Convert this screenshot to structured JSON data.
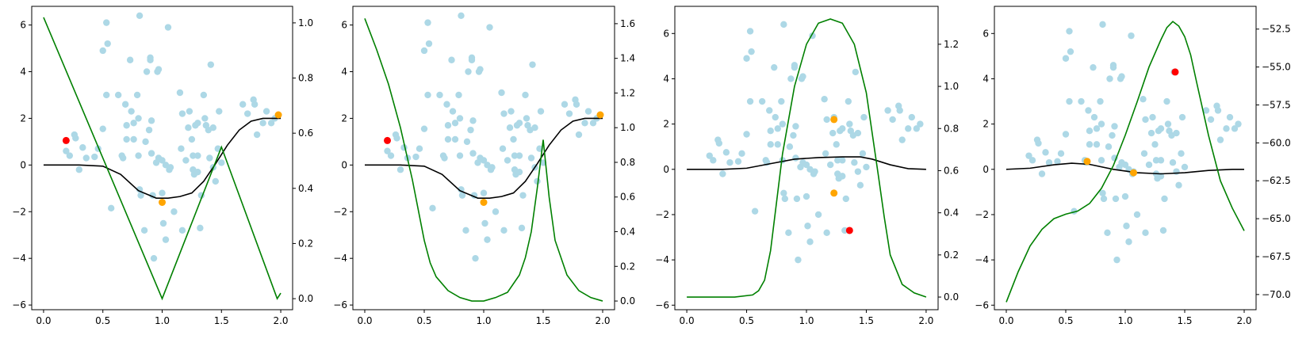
{
  "chart_data": [
    {
      "type": "scatter",
      "xlim": [
        -0.1,
        2.1
      ],
      "ylim": [
        -6.2,
        6.8
      ],
      "y2lim": [
        -0.04,
        1.06
      ],
      "xticks": [
        0,
        0.5,
        1,
        1.5,
        2
      ],
      "xtick_labels": [
        "0.0",
        "0.5",
        "1.0",
        "1.5",
        "2.0"
      ],
      "yticks": [
        -6,
        -4,
        -2,
        0,
        2,
        4,
        6
      ],
      "ytick_labels": [
        "−6",
        "−4",
        "−2",
        "0",
        "2",
        "4",
        "6"
      ],
      "y2ticks": [
        0,
        0.2,
        0.4,
        0.6,
        0.8,
        1.0
      ],
      "y2tick_labels": [
        "0.0",
        "0.2",
        "0.4",
        "0.6",
        "0.8",
        "1.0"
      ],
      "red_points": [
        [
          0.19,
          1.05
        ]
      ],
      "orange_points": [
        [
          1.0,
          -1.6
        ],
        [
          1.98,
          2.15
        ]
      ],
      "black_line": {
        "x": [
          0,
          0.3,
          0.5,
          0.65,
          0.8,
          0.95,
          1.05,
          1.15,
          1.25,
          1.35,
          1.45,
          1.55,
          1.65,
          1.75,
          1.85,
          2.0
        ],
        "y": [
          0,
          0,
          -0.05,
          -0.4,
          -1.1,
          -1.42,
          -1.42,
          -1.35,
          -1.2,
          -0.7,
          0.05,
          0.85,
          1.5,
          1.88,
          2.0,
          2.0
        ]
      },
      "green_line": {
        "x": [
          0,
          1.0,
          1.5,
          1.97,
          2.0
        ],
        "y": [
          1.02,
          0.0,
          0.55,
          0.0,
          0.02
        ]
      }
    },
    {
      "type": "scatter",
      "xlim": [
        -0.1,
        2.1
      ],
      "ylim": [
        -6.2,
        6.8
      ],
      "y2lim": [
        -0.05,
        1.7
      ],
      "xticks": [
        0,
        0.5,
        1,
        1.5,
        2
      ],
      "xtick_labels": [
        "0.0",
        "0.5",
        "1.0",
        "1.5",
        "2.0"
      ],
      "yticks": [
        -6,
        -4,
        -2,
        0,
        2,
        4,
        6
      ],
      "ytick_labels": [
        "−6",
        "−4",
        "−2",
        "0",
        "2",
        "4",
        "6"
      ],
      "y2ticks": [
        0,
        0.2,
        0.4,
        0.6,
        0.8,
        1.0,
        1.2,
        1.4,
        1.6
      ],
      "y2tick_labels": [
        "0.0",
        "0.2",
        "0.4",
        "0.6",
        "0.8",
        "1.0",
        "1.2",
        "1.4",
        "1.6"
      ],
      "red_points": [
        [
          0.19,
          1.05
        ]
      ],
      "orange_points": [
        [
          1.0,
          -1.6
        ],
        [
          1.98,
          2.15
        ]
      ],
      "black_line": {
        "x": [
          0,
          0.3,
          0.5,
          0.65,
          0.8,
          0.95,
          1.05,
          1.15,
          1.25,
          1.35,
          1.45,
          1.55,
          1.65,
          1.75,
          1.85,
          2.0
        ],
        "y": [
          0,
          0,
          -0.05,
          -0.4,
          -1.1,
          -1.42,
          -1.42,
          -1.35,
          -1.2,
          -0.7,
          0.05,
          0.85,
          1.5,
          1.88,
          2.0,
          2.0
        ]
      },
      "green_line": {
        "x": [
          0,
          0.1,
          0.2,
          0.3,
          0.4,
          0.5,
          0.55,
          0.6,
          0.7,
          0.8,
          0.9,
          1.0,
          1.1,
          1.2,
          1.3,
          1.35,
          1.4,
          1.45,
          1.5,
          1.55,
          1.6,
          1.7,
          1.8,
          1.9,
          2.0
        ],
        "y": [
          1.63,
          1.45,
          1.25,
          1.0,
          0.7,
          0.35,
          0.22,
          0.14,
          0.06,
          0.02,
          0.0,
          0.0,
          0.02,
          0.05,
          0.15,
          0.25,
          0.4,
          0.65,
          0.93,
          0.6,
          0.35,
          0.15,
          0.06,
          0.02,
          0.0
        ]
      }
    },
    {
      "type": "scatter",
      "xlim": [
        -0.1,
        2.1
      ],
      "ylim": [
        -6.2,
        7.2
      ],
      "y2lim": [
        -0.06,
        1.38
      ],
      "xticks": [
        0,
        0.5,
        1,
        1.5,
        2
      ],
      "xtick_labels": [
        "0.0",
        "0.5",
        "1.0",
        "1.5",
        "2.0"
      ],
      "yticks": [
        -6,
        -4,
        -2,
        0,
        2,
        4,
        6
      ],
      "ytick_labels": [
        "−6",
        "−4",
        "−2",
        "0",
        "2",
        "4",
        "6"
      ],
      "y2ticks": [
        0,
        0.2,
        0.4,
        0.6,
        0.8,
        1.0,
        1.2
      ],
      "y2tick_labels": [
        "0.0",
        "0.2",
        "0.4",
        "0.6",
        "0.8",
        "1.0",
        "1.2"
      ],
      "red_points": [
        [
          1.36,
          -2.7
        ]
      ],
      "orange_points": [
        [
          1.23,
          2.2
        ],
        [
          1.23,
          -1.05
        ]
      ],
      "black_line": {
        "x": [
          0,
          0.3,
          0.5,
          0.7,
          0.9,
          1.1,
          1.3,
          1.45,
          1.55,
          1.7,
          1.85,
          2.0
        ],
        "y": [
          0,
          0,
          0.05,
          0.25,
          0.45,
          0.52,
          0.55,
          0.55,
          0.45,
          0.2,
          0.03,
          0
        ]
      },
      "green_line": {
        "x": [
          0,
          0.4,
          0.55,
          0.6,
          0.65,
          0.7,
          0.75,
          0.8,
          0.9,
          1.0,
          1.1,
          1.2,
          1.3,
          1.4,
          1.5,
          1.6,
          1.65,
          1.7,
          1.8,
          1.9,
          2.0
        ],
        "y": [
          0,
          0,
          0.01,
          0.03,
          0.08,
          0.22,
          0.45,
          0.68,
          1.0,
          1.2,
          1.3,
          1.32,
          1.3,
          1.2,
          0.97,
          0.58,
          0.38,
          0.2,
          0.06,
          0.02,
          0.0
        ]
      }
    },
    {
      "type": "scatter",
      "xlim": [
        -0.1,
        2.1
      ],
      "ylim": [
        -6.2,
        7.2
      ],
      "y2lim": [
        -71.0,
        -51.0
      ],
      "xticks": [
        0,
        0.5,
        1,
        1.5,
        2
      ],
      "xtick_labels": [
        "0.0",
        "0.5",
        "1.0",
        "1.5",
        "2.0"
      ],
      "yticks": [
        -6,
        -4,
        -2,
        0,
        2,
        4,
        6
      ],
      "ytick_labels": [
        "−6",
        "−4",
        "−2",
        "0",
        "2",
        "4",
        "6"
      ],
      "y2ticks": [
        -70.0,
        -67.5,
        -65.0,
        -62.5,
        -60.0,
        -57.5,
        -55.0,
        -52.5
      ],
      "y2tick_labels": [
        "−70.0",
        "−67.5",
        "−65.0",
        "−62.5",
        "−60.0",
        "−57.5",
        "−55.0",
        "−52.5"
      ],
      "red_points": [
        [
          1.42,
          4.3
        ]
      ],
      "orange_points": [
        [
          0.68,
          0.35
        ],
        [
          1.07,
          -0.15
        ]
      ],
      "black_line": {
        "x": [
          0,
          0.2,
          0.4,
          0.55,
          0.7,
          0.9,
          1.1,
          1.3,
          1.5,
          1.7,
          1.9,
          2.0
        ],
        "y": [
          0,
          0.05,
          0.2,
          0.27,
          0.22,
          0.0,
          -0.15,
          -0.2,
          -0.15,
          -0.05,
          0,
          0
        ]
      },
      "green_line": {
        "x": [
          0,
          0.1,
          0.2,
          0.3,
          0.4,
          0.5,
          0.6,
          0.7,
          0.8,
          0.9,
          1.0,
          1.1,
          1.2,
          1.3,
          1.35,
          1.4,
          1.45,
          1.5,
          1.55,
          1.6,
          1.7,
          1.8,
          1.9,
          2.0
        ],
        "y": [
          -70.5,
          -68.5,
          -66.8,
          -65.7,
          -65.0,
          -64.7,
          -64.5,
          -64.0,
          -63.0,
          -61.5,
          -59.5,
          -57.3,
          -55.0,
          -53.2,
          -52.4,
          -52.0,
          -52.3,
          -53.0,
          -54.2,
          -56.0,
          -59.5,
          -62.5,
          -64.3,
          -65.8
        ]
      }
    }
  ],
  "scatter_points": [
    [
      0.19,
      0.6
    ],
    [
      0.22,
      0.4
    ],
    [
      0.26,
      1.3
    ],
    [
      0.27,
      1.15
    ],
    [
      0.3,
      -0.2
    ],
    [
      0.33,
      0.75
    ],
    [
      0.36,
      0.3
    ],
    [
      0.43,
      0.35
    ],
    [
      0.46,
      0.7
    ],
    [
      0.5,
      1.55
    ],
    [
      0.5,
      4.9
    ],
    [
      0.53,
      6.1
    ],
    [
      0.54,
      5.2
    ],
    [
      0.53,
      3.0
    ],
    [
      0.57,
      -1.85
    ],
    [
      0.63,
      3.0
    ],
    [
      0.66,
      0.4
    ],
    [
      0.67,
      0.3
    ],
    [
      0.69,
      2.6
    ],
    [
      0.7,
      1.7
    ],
    [
      0.7,
      1.1
    ],
    [
      0.73,
      4.5
    ],
    [
      0.74,
      2.3
    ],
    [
      0.76,
      1.1
    ],
    [
      0.76,
      1.8
    ],
    [
      0.79,
      3.0
    ],
    [
      0.8,
      2.0
    ],
    [
      0.8,
      0.4
    ],
    [
      0.81,
      -1.05
    ],
    [
      0.81,
      6.4
    ],
    [
      0.82,
      -1.3
    ],
    [
      0.85,
      -2.8
    ],
    [
      0.86,
      1.0
    ],
    [
      0.87,
      4.0
    ],
    [
      0.89,
      1.5
    ],
    [
      0.9,
      4.6
    ],
    [
      0.9,
      4.5
    ],
    [
      0.91,
      1.9
    ],
    [
      0.91,
      0.5
    ],
    [
      0.92,
      -1.3
    ],
    [
      0.93,
      -4.0
    ],
    [
      0.95,
      0.1
    ],
    [
      0.96,
      4.0
    ],
    [
      0.97,
      4.1
    ],
    [
      0.97,
      0.3
    ],
    [
      1.0,
      0.2
    ],
    [
      1.0,
      -1.2
    ],
    [
      1.01,
      -2.5
    ],
    [
      1.03,
      0.0
    ],
    [
      1.03,
      -3.2
    ],
    [
      1.05,
      5.9
    ],
    [
      1.06,
      -0.2
    ],
    [
      1.07,
      -0.1
    ],
    [
      1.1,
      -2.0
    ],
    [
      1.15,
      3.1
    ],
    [
      1.16,
      0.7
    ],
    [
      1.17,
      -2.8
    ],
    [
      1.17,
      2.2
    ],
    [
      1.2,
      0.2
    ],
    [
      1.22,
      1.6
    ],
    [
      1.23,
      2.3
    ],
    [
      1.25,
      1.1
    ],
    [
      1.26,
      -0.2
    ],
    [
      1.26,
      0.4
    ],
    [
      1.27,
      -0.4
    ],
    [
      1.28,
      1.7
    ],
    [
      1.3,
      1.8
    ],
    [
      1.3,
      0.4
    ],
    [
      1.3,
      -0.3
    ],
    [
      1.32,
      -2.7
    ],
    [
      1.33,
      -1.3
    ],
    [
      1.35,
      3.0
    ],
    [
      1.36,
      2.0
    ],
    [
      1.37,
      1.7
    ],
    [
      1.39,
      1.5
    ],
    [
      1.4,
      0.3
    ],
    [
      1.41,
      4.3
    ],
    [
      1.43,
      -0.1
    ],
    [
      1.43,
      1.6
    ],
    [
      1.45,
      -0.7
    ],
    [
      1.47,
      0.7
    ],
    [
      1.48,
      2.3
    ],
    [
      1.5,
      0.1
    ],
    [
      1.68,
      2.6
    ],
    [
      1.72,
      2.2
    ],
    [
      1.77,
      2.8
    ],
    [
      1.78,
      2.6
    ],
    [
      1.8,
      1.3
    ],
    [
      1.85,
      1.8
    ],
    [
      1.88,
      2.3
    ],
    [
      1.92,
      1.8
    ],
    [
      1.95,
      2.0
    ]
  ],
  "colors": {
    "scatter": "#add8e6",
    "red_point": "#ff0000",
    "orange_point": "#ffa500",
    "black_line": "#000000",
    "green_line": "#008000",
    "axes": "#000000"
  }
}
